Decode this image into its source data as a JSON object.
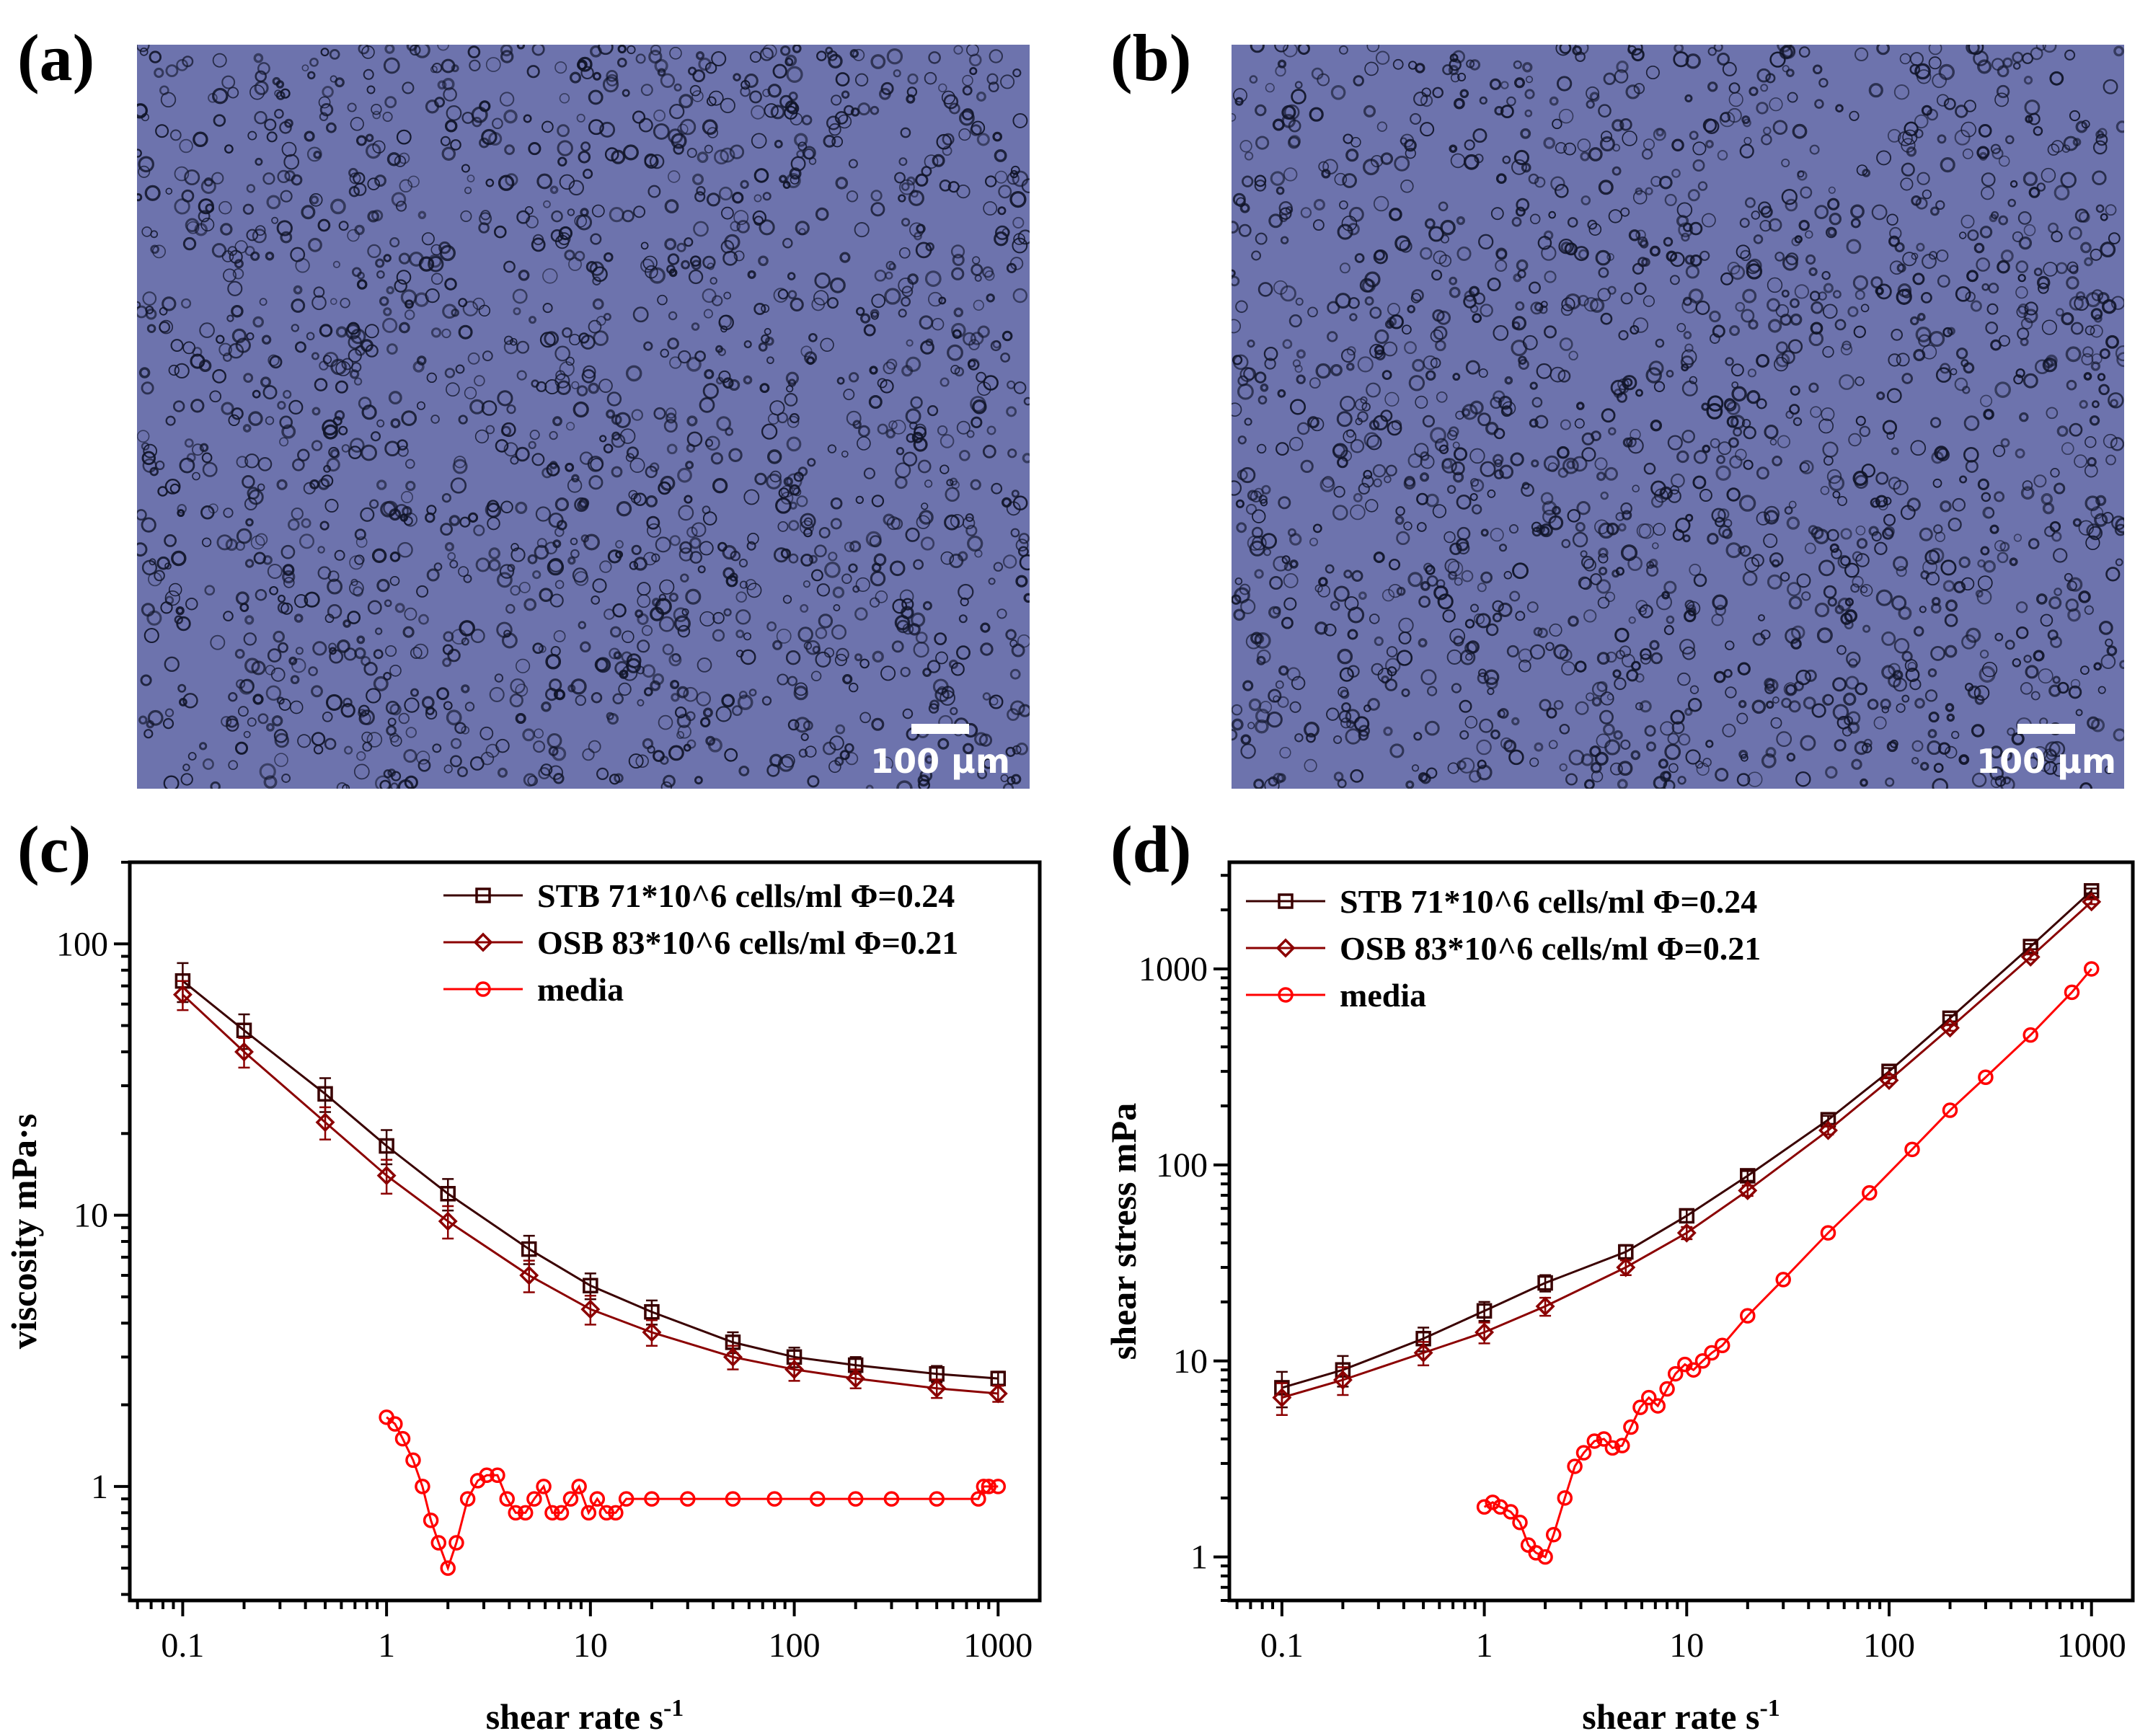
{
  "panels": {
    "a": {
      "label": "(a)",
      "scale_bar": "100 µm"
    },
    "b": {
      "label": "(b)",
      "scale_bar": "100 µm"
    },
    "c": {
      "label": "(c)"
    },
    "d": {
      "label": "(d)"
    }
  },
  "colors": {
    "stb": "#3a0000",
    "osb": "#8b0000",
    "media": "#ff0000",
    "micro_bg": "#6d73ad",
    "cells": "#101428"
  },
  "chart_data": [
    {
      "id": "c",
      "type": "line",
      "xscale": "log",
      "yscale": "log",
      "xlabel": "shear rate s",
      "xlabel_sup": "-1",
      "ylabel": "viscosity mPa·s",
      "xlim": [
        0.055,
        1600
      ],
      "ylim": [
        0.38,
        200
      ],
      "xticks": [
        0.1,
        1,
        10,
        100,
        1000
      ],
      "xtick_labels": [
        "0.1",
        "1",
        "10",
        "100",
        "1000"
      ],
      "yticks": [
        1,
        10,
        100
      ],
      "ytick_labels": [
        "1",
        "10",
        "100"
      ],
      "legend_position": "top-right",
      "series": [
        {
          "name": "STB 71*10^6 cells/ml Φ=0.24",
          "marker": "square",
          "color_key": "stb",
          "x": [
            0.1,
            0.2,
            0.5,
            1,
            2,
            5,
            10,
            20,
            50,
            100,
            200,
            500,
            1000
          ],
          "y": [
            73,
            48,
            28,
            18,
            12,
            7.5,
            5.5,
            4.4,
            3.4,
            3.0,
            2.8,
            2.6,
            2.5
          ],
          "err": [
            12,
            7,
            4,
            2.6,
            1.6,
            0.9,
            0.6,
            0.45,
            0.3,
            0.25,
            0.2,
            0.18,
            0.15
          ]
        },
        {
          "name": "OSB 83*10^6 cells/ml Φ=0.21",
          "marker": "diamond",
          "color_key": "osb",
          "x": [
            0.1,
            0.2,
            0.5,
            1,
            2,
            5,
            10,
            20,
            50,
            100,
            200,
            500,
            1000
          ],
          "y": [
            65,
            40,
            22,
            14,
            9.5,
            6.0,
            4.5,
            3.7,
            3.0,
            2.7,
            2.5,
            2.3,
            2.2
          ],
          "err": [
            8,
            5,
            3,
            2,
            1.3,
            0.8,
            0.55,
            0.4,
            0.3,
            0.25,
            0.2,
            0.18,
            0.15
          ]
        },
        {
          "name": "media",
          "marker": "circle",
          "color_key": "media",
          "x": [
            1,
            1.1,
            1.2,
            1.35,
            1.5,
            1.65,
            1.8,
            2,
            2.2,
            2.5,
            2.8,
            3.1,
            3.5,
            3.9,
            4.3,
            4.8,
            5.3,
            5.9,
            6.5,
            7.2,
            8,
            8.8,
            9.8,
            10.8,
            12,
            13.3,
            15,
            20,
            30,
            50,
            80,
            130,
            200,
            300,
            500,
            800,
            850,
            900,
            1000
          ],
          "y": [
            1.8,
            1.7,
            1.5,
            1.25,
            1.0,
            0.75,
            0.62,
            0.5,
            0.62,
            0.9,
            1.05,
            1.1,
            1.1,
            0.9,
            0.8,
            0.8,
            0.9,
            1.0,
            0.8,
            0.8,
            0.9,
            1.0,
            0.8,
            0.9,
            0.8,
            0.8,
            0.9,
            0.9,
            0.9,
            0.9,
            0.9,
            0.9,
            0.9,
            0.9,
            0.9,
            0.9,
            1.0,
            1.0,
            1.0
          ]
        }
      ]
    },
    {
      "id": "d",
      "type": "line",
      "xscale": "log",
      "yscale": "log",
      "xlabel": "shear rate s",
      "xlabel_sup": "-1",
      "ylabel": "shear stress mPa",
      "xlim": [
        0.055,
        1600
      ],
      "ylim": [
        0.6,
        3500
      ],
      "xticks": [
        0.1,
        1,
        10,
        100,
        1000
      ],
      "xtick_labels": [
        "0.1",
        "1",
        "10",
        "100",
        "1000"
      ],
      "yticks": [
        1,
        10,
        100,
        1000
      ],
      "ytick_labels": [
        "1",
        "10",
        "100",
        "1000"
      ],
      "legend_position": "top-left",
      "series": [
        {
          "name": "STB 71*10^6 cells/ml Φ=0.24",
          "marker": "square",
          "color_key": "stb",
          "x": [
            0.1,
            0.2,
            0.5,
            1,
            2,
            5,
            10,
            20,
            50,
            100,
            200,
            500,
            1000
          ],
          "y": [
            7.3,
            9.0,
            13,
            18,
            25,
            36,
            55,
            88,
            170,
            300,
            560,
            1300,
            2500
          ],
          "err": [
            1.5,
            1.6,
            1.8,
            2.0,
            2.4,
            3,
            4,
            5,
            8,
            12,
            20,
            40,
            70
          ]
        },
        {
          "name": "OSB 83*10^6 cells/ml Φ=0.21",
          "marker": "diamond",
          "color_key": "osb",
          "x": [
            0.1,
            0.2,
            0.5,
            1,
            2,
            5,
            10,
            20,
            50,
            100,
            200,
            500,
            1000
          ],
          "y": [
            6.5,
            8.0,
            11,
            14,
            19,
            30,
            45,
            74,
            150,
            270,
            500,
            1150,
            2200
          ],
          "err": [
            1.2,
            1.3,
            1.5,
            1.7,
            2,
            2.6,
            3.2,
            4.5,
            7,
            10,
            17,
            35,
            60
          ]
        },
        {
          "name": "media",
          "marker": "circle",
          "color_key": "media",
          "x": [
            1,
            1.1,
            1.2,
            1.35,
            1.5,
            1.65,
            1.8,
            2,
            2.2,
            2.5,
            2.8,
            3.1,
            3.5,
            3.9,
            4.3,
            4.8,
            5.3,
            5.9,
            6.5,
            7.2,
            8,
            8.8,
            9.8,
            10.8,
            12,
            13.3,
            15,
            20,
            30,
            50,
            80,
            130,
            200,
            300,
            500,
            800,
            1000
          ],
          "y": [
            1.8,
            1.9,
            1.8,
            1.7,
            1.5,
            1.15,
            1.05,
            1.0,
            1.3,
            2.0,
            2.9,
            3.4,
            3.9,
            4.0,
            3.6,
            3.7,
            4.6,
            5.8,
            6.5,
            5.9,
            7.2,
            8.6,
            9.6,
            9.0,
            10,
            11,
            12,
            17,
            26,
            45,
            72,
            120,
            190,
            280,
            460,
            760,
            1000
          ]
        }
      ]
    }
  ]
}
